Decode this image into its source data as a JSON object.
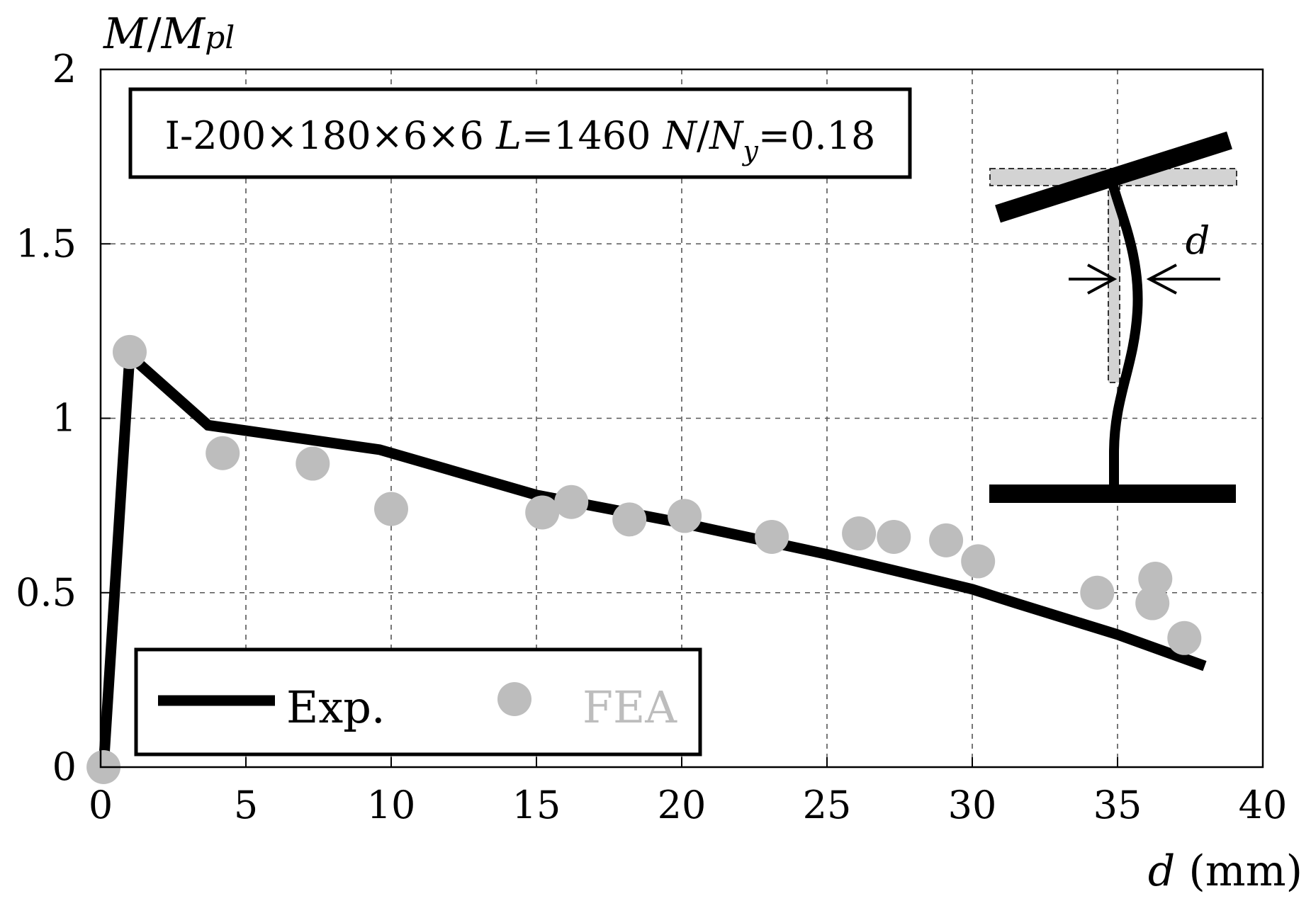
{
  "chart_data": {
    "type": "line",
    "title": "",
    "annotation": {
      "prefix": "I-200×180×6×6 ",
      "L_symbol": "L",
      "L_value": "=1460 ",
      "N_symbol": "N",
      "slash": "/",
      "Ny_symbol": "N",
      "Ny_subscript": "y",
      "ratio_value": "=0.18"
    },
    "ylabel": {
      "main": "M",
      "slash": "/",
      "sub_main": "M",
      "sub": "pl"
    },
    "xlabel": {
      "symbol": "d",
      "unit": " (mm)"
    },
    "inset_label": "d",
    "xlim": [
      0,
      40
    ],
    "ylim": [
      0,
      2
    ],
    "x_ticks": [
      "0",
      "5",
      "10",
      "15",
      "20",
      "25",
      "30",
      "35",
      "40"
    ],
    "y_ticks": [
      "0",
      "0.5",
      "1",
      "1.5",
      "2"
    ],
    "grid": true,
    "legend_position": "bottom-left",
    "series": [
      {
        "name": "Exp.",
        "kind": "line",
        "color": "#000000",
        "points": [
          [
            0.1,
            0.0
          ],
          [
            1.0,
            1.18
          ],
          [
            3.7,
            0.98
          ],
          [
            9.6,
            0.91
          ],
          [
            15.0,
            0.78
          ],
          [
            20.0,
            0.7
          ],
          [
            25.0,
            0.61
          ],
          [
            30.0,
            0.51
          ],
          [
            31.5,
            0.47
          ],
          [
            35.0,
            0.38
          ],
          [
            38.0,
            0.29
          ]
        ]
      },
      {
        "name": "FEA",
        "kind": "scatter",
        "color": "#bdbdbd",
        "points": [
          [
            0.1,
            0.0
          ],
          [
            1.0,
            1.19
          ],
          [
            4.2,
            0.9
          ],
          [
            7.3,
            0.87
          ],
          [
            10.0,
            0.74
          ],
          [
            15.2,
            0.73
          ],
          [
            16.2,
            0.76
          ],
          [
            18.2,
            0.71
          ],
          [
            20.1,
            0.72
          ],
          [
            23.1,
            0.66
          ],
          [
            26.1,
            0.67
          ],
          [
            27.3,
            0.66
          ],
          [
            29.1,
            0.65
          ],
          [
            30.2,
            0.59
          ],
          [
            34.3,
            0.5
          ],
          [
            36.3,
            0.54
          ],
          [
            36.2,
            0.47
          ],
          [
            37.3,
            0.37
          ]
        ]
      }
    ]
  }
}
